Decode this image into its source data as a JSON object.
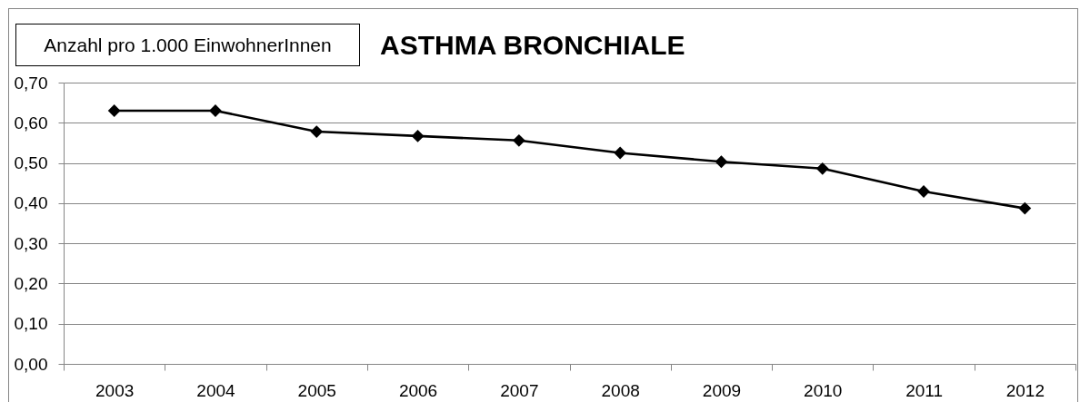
{
  "chart_data": {
    "type": "line",
    "title": "ASTHMA BRONCHIALE",
    "ylabel": "Anzahl pro 1.000 EinwohnerInnen",
    "categories": [
      "2003",
      "2004",
      "2005",
      "2006",
      "2007",
      "2008",
      "2009",
      "2010",
      "2011",
      "2012"
    ],
    "values": [
      0.63,
      0.63,
      0.578,
      0.567,
      0.556,
      0.525,
      0.503,
      0.486,
      0.429,
      0.387
    ],
    "color": "#000000",
    "ylim": [
      0,
      0.7
    ],
    "yticks": [
      {
        "value": 0,
        "label": "0,00"
      },
      {
        "value": 0.1,
        "label": "0,10"
      },
      {
        "value": 0.2,
        "label": "0,20"
      },
      {
        "value": 0.3,
        "label": "0,30"
      },
      {
        "value": 0.4,
        "label": "0,40"
      },
      {
        "value": 0.5,
        "label": "0,50"
      },
      {
        "value": 0.6,
        "label": "0,60"
      },
      {
        "value": 0.7,
        "label": "0,70"
      }
    ],
    "grid": "y",
    "marker": "diamond",
    "line_style": "solid"
  }
}
